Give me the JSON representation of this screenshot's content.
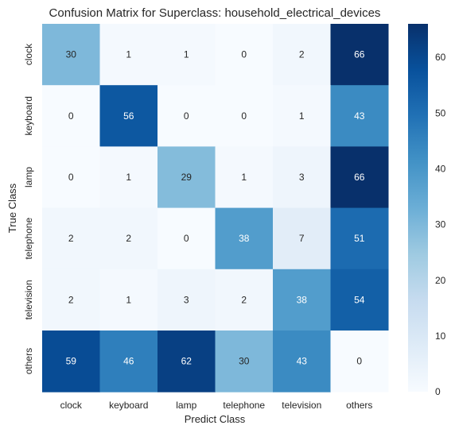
{
  "chart_data": {
    "type": "heatmap",
    "title": "Confusion Matrix for Superclass: household_electrical_devices",
    "xlabel": "Predict Class",
    "ylabel": "True Class",
    "x_categories": [
      "clock",
      "keyboard",
      "lamp",
      "telephone",
      "television",
      "others"
    ],
    "y_categories": [
      "clock",
      "keyboard",
      "lamp",
      "telephone",
      "television",
      "others"
    ],
    "values": [
      [
        30,
        1,
        1,
        0,
        2,
        66
      ],
      [
        0,
        56,
        0,
        0,
        1,
        43
      ],
      [
        0,
        1,
        29,
        1,
        3,
        66
      ],
      [
        2,
        2,
        0,
        38,
        7,
        51
      ],
      [
        2,
        1,
        3,
        2,
        38,
        54
      ],
      [
        59,
        46,
        62,
        30,
        43,
        0
      ]
    ],
    "colorbar": {
      "min": 0,
      "max": 66,
      "ticks": [
        0,
        10,
        20,
        30,
        40,
        50,
        60
      ],
      "colormap": "Blues"
    },
    "grid": false
  }
}
